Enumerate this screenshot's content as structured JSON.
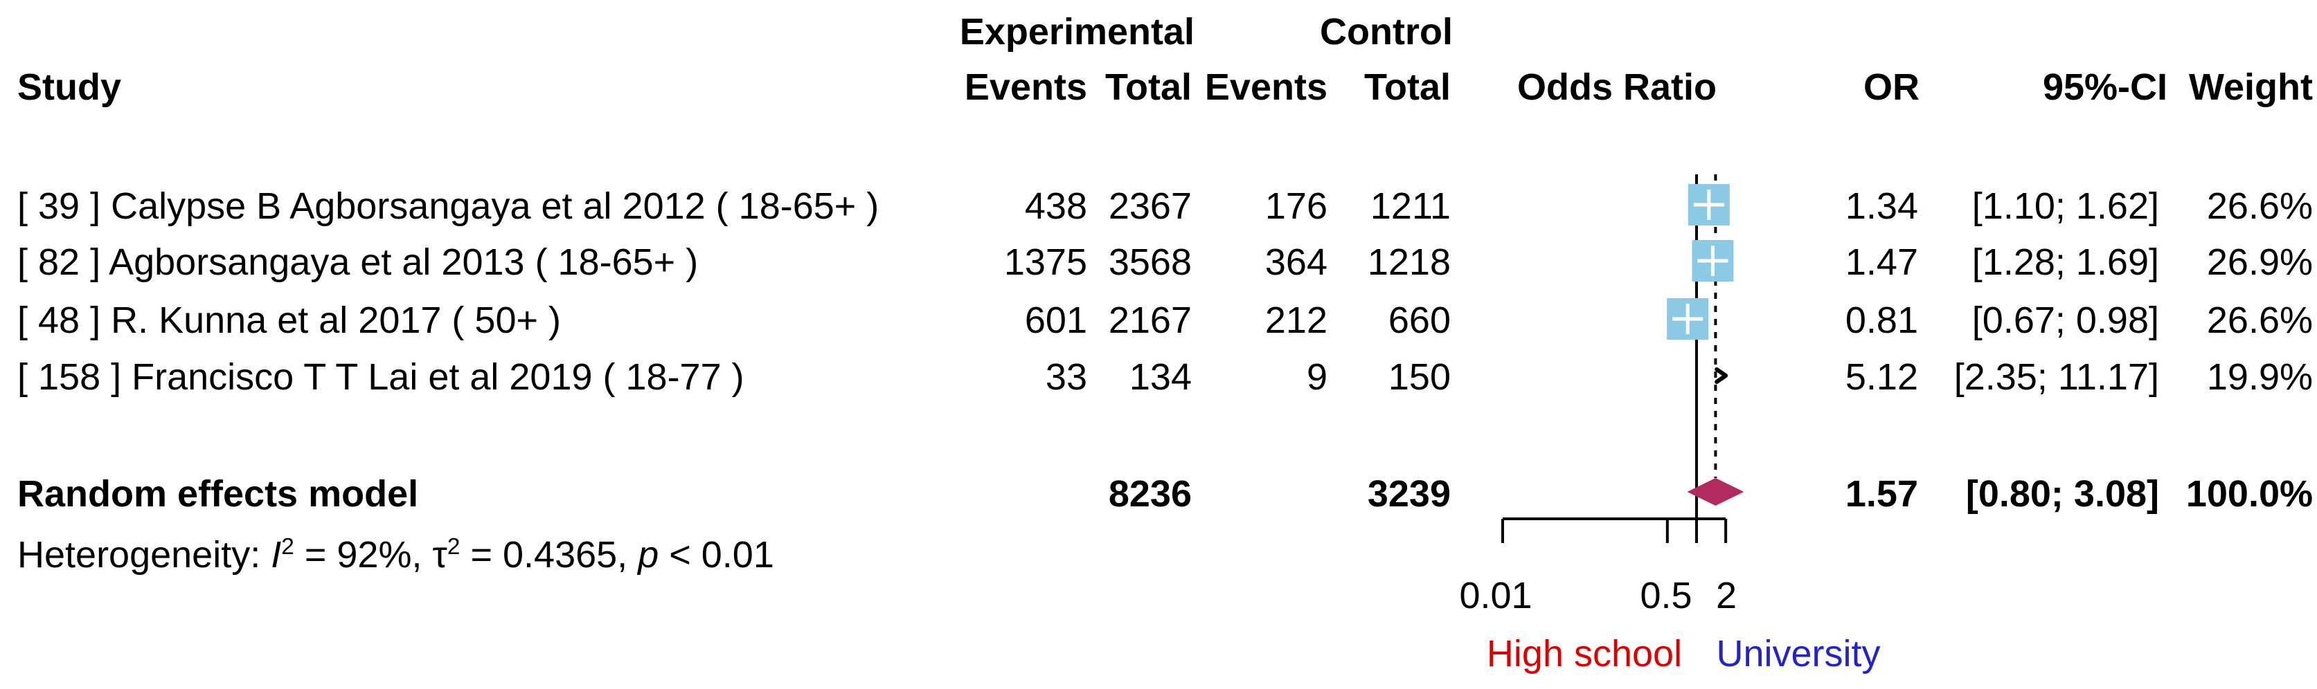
{
  "table": {
    "group_headers": {
      "experimental": "Experimental",
      "control": "Control"
    },
    "col_headers": {
      "study": "Study",
      "exp_events": "Events",
      "exp_total": "Total",
      "ctrl_events": "Events",
      "ctrl_total": "Total",
      "odds_ratio": "Odds Ratio",
      "or": "OR",
      "ci": "95%-CI",
      "weight": "Weight"
    },
    "rows": [
      {
        "label": "[ 39 ] Calypse B Agborsangaya et al 2012 ( 18-65+ )",
        "exp_events": "438",
        "exp_total": "2367",
        "ctrl_events": "176",
        "ctrl_total": "1211",
        "or": "1.34",
        "ci": "[1.10;  1.62]",
        "weight": "26.6%"
      },
      {
        "label": "[ 82 ] Agborsangaya et al 2013 ( 18-65+ )",
        "exp_events": "1375",
        "exp_total": "3568",
        "ctrl_events": "364",
        "ctrl_total": "1218",
        "or": "1.47",
        "ci": "[1.28;  1.69]",
        "weight": "26.9%"
      },
      {
        "label": "[ 48 ] R. Kunna et al 2017 ( 50+ )",
        "exp_events": "601",
        "exp_total": "2167",
        "ctrl_events": "212",
        "ctrl_total": "660",
        "or": "0.81",
        "ci": "[0.67;  0.98]",
        "weight": "26.6%"
      },
      {
        "label": "[ 158 ] Francisco T T Lai et al 2019 ( 18-77 )",
        "exp_events": "33",
        "exp_total": "134",
        "ctrl_events": "9",
        "ctrl_total": "150",
        "or": "5.12",
        "ci": "[2.35; 11.17]",
        "weight": "19.9%"
      }
    ],
    "summary": {
      "label": "Random effects model",
      "exp_total": "8236",
      "ctrl_total": "3239",
      "or": "1.57",
      "ci": "[0.80;  3.08]",
      "weight": "100.0%"
    },
    "heterogeneity": {
      "prefix": "Heterogeneity: ",
      "i_sym": "I",
      "i_sup": "2",
      "seg1": " = 92%, ",
      "tau_sym": "τ",
      "tau_sup": "2",
      "seg2": " = 0.4365, ",
      "p_sym": "p",
      "seg3": " < 0.01"
    }
  },
  "axis": {
    "tick_labels": [
      "0.01",
      "0.5",
      "2"
    ]
  },
  "footer": {
    "left_label": "High school",
    "right_label": "University",
    "left_color": "#de0000",
    "right_color": "#2222ce"
  },
  "colors": {
    "square": "#8cc9e4",
    "square_cross": "#ffffff",
    "diamond": "#b12b5e",
    "line": "#000000"
  },
  "chart_data": {
    "type": "forest",
    "scale": "log10",
    "title": "",
    "xlabel_ticks": [
      0.01,
      0.5,
      2
    ],
    "xlim": [
      0.01,
      2
    ],
    "reference_line": 1,
    "pooled_dashed_line": 1.57,
    "direction_labels": {
      "left": "High school",
      "right": "University"
    },
    "studies": [
      {
        "label": "[ 39 ] Calypse B Agborsangaya et al 2012 ( 18-65+ )",
        "exp_events": 438,
        "exp_total": 2367,
        "ctrl_events": 176,
        "ctrl_total": 1211,
        "or": 1.34,
        "ci": [
          1.1,
          1.62
        ],
        "weight_pct": 26.6
      },
      {
        "label": "[ 82 ] Agborsangaya et al 2013 ( 18-65+ )",
        "exp_events": 1375,
        "exp_total": 3568,
        "ctrl_events": 364,
        "ctrl_total": 1218,
        "or": 1.47,
        "ci": [
          1.28,
          1.69
        ],
        "weight_pct": 26.9
      },
      {
        "label": "[ 48 ] R. Kunna et al 2017 ( 50+ )",
        "exp_events": 601,
        "exp_total": 2167,
        "ctrl_events": 212,
        "ctrl_total": 660,
        "or": 0.81,
        "ci": [
          0.67,
          0.98
        ],
        "weight_pct": 26.6
      },
      {
        "label": "[ 158 ] Francisco T T Lai et al 2019 ( 18-77 )",
        "exp_events": 33,
        "exp_total": 134,
        "ctrl_events": 9,
        "ctrl_total": 150,
        "or": 5.12,
        "ci": [
          2.35,
          11.17
        ],
        "weight_pct": 19.9
      }
    ],
    "summary": {
      "model": "Random effects model",
      "exp_total": 8236,
      "ctrl_total": 3239,
      "or": 1.57,
      "ci": [
        0.8,
        3.08
      ],
      "weight_pct": 100.0
    },
    "heterogeneity": {
      "I2": "92%",
      "tau2": 0.4365,
      "p": "< 0.01"
    }
  }
}
